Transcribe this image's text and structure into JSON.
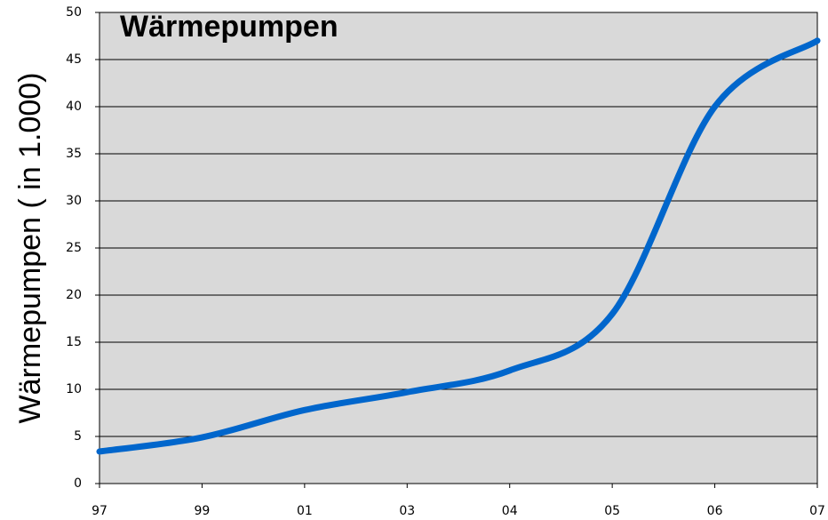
{
  "chart_data": {
    "type": "line",
    "title": "Wärmepumpen",
    "y_label": "Wärmepumpen ( in 1.000)",
    "categories": [
      "97",
      "99",
      "01",
      "03",
      "04",
      "05",
      "06",
      "07"
    ],
    "series": [
      {
        "name": "Wärmepumpen",
        "color": "#0066cc",
        "values": [
          3.4,
          4.9,
          7.8,
          9.7,
          12,
          18,
          40,
          47
        ]
      }
    ],
    "ylim": [
      0,
      50
    ],
    "yticks": [
      0,
      5,
      10,
      15,
      20,
      25,
      30,
      35,
      40,
      45,
      50
    ],
    "grid": true
  }
}
